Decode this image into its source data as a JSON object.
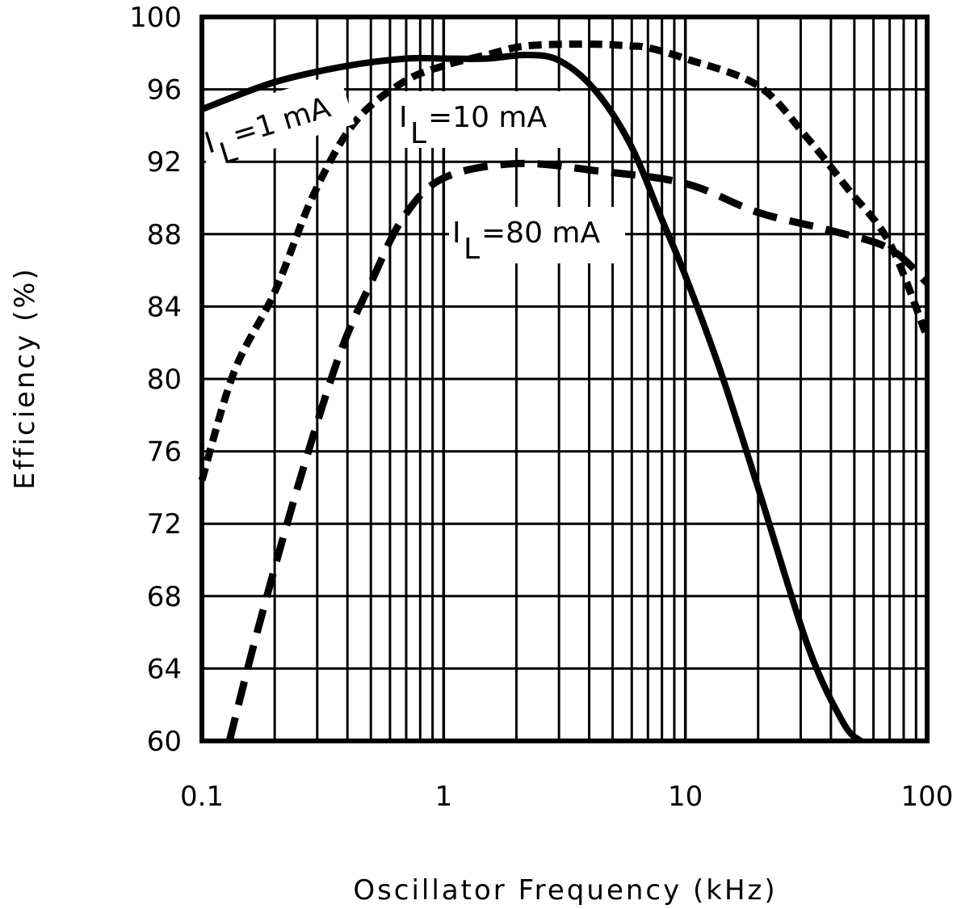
{
  "chart_data": {
    "type": "line",
    "title": "",
    "xlabel": "Oscillator Frequency (kHz)",
    "ylabel": "Efficiency (%)",
    "xscale": "log",
    "xlim": [
      0.1,
      100
    ],
    "ylim": [
      60,
      100
    ],
    "grid": true,
    "xticks": [
      0.1,
      1,
      10,
      100
    ],
    "xtick_labels": [
      "0.1",
      "1",
      "10",
      "100"
    ],
    "yticks": [
      60,
      64,
      68,
      72,
      76,
      80,
      84,
      88,
      92,
      96,
      100
    ],
    "ytick_labels": [
      "60",
      "64",
      "68",
      "72",
      "76",
      "80",
      "84",
      "88",
      "92",
      "96",
      "100"
    ],
    "series": [
      {
        "label": {
          "prefix": "I",
          "sub": "L",
          "text": "=1 mA"
        },
        "style": "solid",
        "color": "#000000",
        "x": [
          0.1,
          0.2,
          0.4,
          0.7,
          1.0,
          1.5,
          2.2,
          3.0,
          4.2,
          5.9,
          8.0,
          10,
          14,
          20.3,
          32.2,
          45,
          53
        ],
        "y": [
          94.9,
          96.4,
          97.3,
          97.7,
          97.7,
          97.7,
          97.9,
          97.6,
          96.0,
          93.0,
          88.8,
          85.7,
          80.4,
          73.7,
          65.2,
          61.0,
          60.0
        ]
      },
      {
        "label": {
          "prefix": "I",
          "sub": "L",
          "text": "=10 mA"
        },
        "style": "short-dash",
        "color": "#000000",
        "x": [
          0.1,
          0.136,
          0.2,
          0.29,
          0.43,
          0.68,
          1.0,
          1.5,
          2.2,
          4.0,
          5.9,
          7.0,
          10,
          20,
          32,
          47,
          70,
          100
        ],
        "y": [
          74.4,
          80.4,
          84.8,
          90.2,
          94.2,
          96.4,
          97.3,
          97.9,
          98.4,
          98.5,
          98.4,
          98.3,
          97.7,
          96.2,
          93.3,
          90.5,
          87.5,
          82.3
        ]
      },
      {
        "label": {
          "prefix": "I",
          "sub": "L",
          "text": "=80 mA"
        },
        "style": "long-dash",
        "color": "#000000",
        "x": [
          0.13,
          0.17,
          0.25,
          0.37,
          0.5,
          0.68,
          1.0,
          2.0,
          4.3,
          10,
          20,
          40,
          70,
          100
        ],
        "y": [
          60.0,
          66.1,
          74.1,
          81.3,
          85.3,
          88.9,
          91.1,
          91.9,
          91.5,
          90.8,
          89.2,
          88.2,
          87.2,
          85.3
        ]
      }
    ]
  }
}
